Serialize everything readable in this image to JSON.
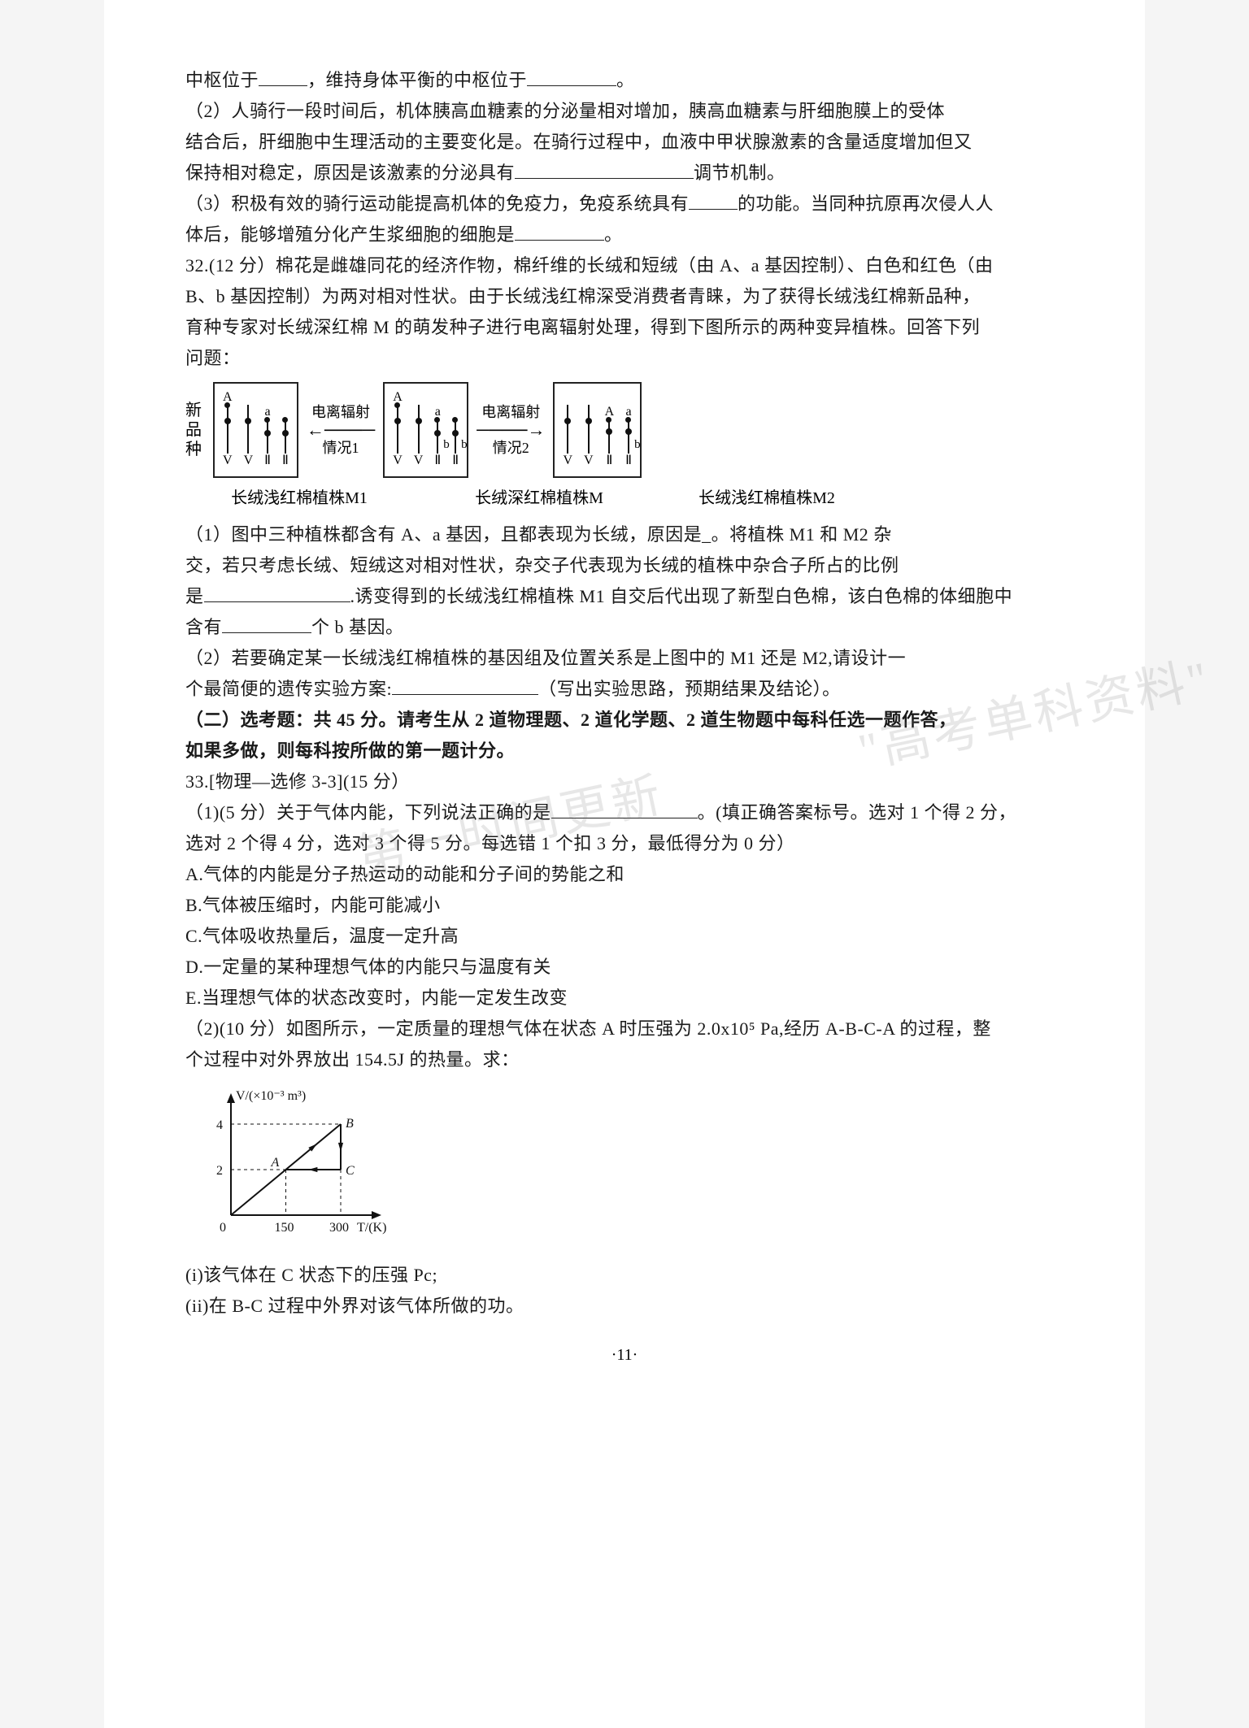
{
  "q31": {
    "l1a": "中枢位于",
    "l1b": "，维持身体平衡的中枢位于",
    "l1c": "。",
    "l2": "（2）人骑行一段时间后，机体胰高血糖素的分泌量相对增加，胰高血糖素与肝细胞膜上的受体",
    "l3": "结合后，肝细胞中生理活动的主要变化是。在骑行过程中，血液中甲状腺激素的含量适度增加但又",
    "l4a": "保持相对稳定，原因是该激素的分泌具有",
    "l4b": "调节机制。",
    "l5a": "（3）积极有效的骑行运动能提高机体的免疫力，免疫系统具有",
    "l5b": "的功能。当同种抗原再次侵人人",
    "l6a": "体后，能够增殖分化产生浆细胞的细胞是",
    "l6b": "。"
  },
  "q32": {
    "head": "32.(12 分）棉花是雌雄同花的经济作物，棉纤维的长绒和短绒（由 A、a 基因控制）、白色和红色（由",
    "l2": "B、b 基因控制）为两对相对性状。由于长绒浅红棉深受消费者青睐，为了获得长绒浅红棉新品种，",
    "l3": "育种专家对长绒深红棉 M 的萌发种子进行电离辐射处理，得到下图所示的两种变异植株。回答下列",
    "l4": "问题：",
    "diagram": {
      "side_label": "新品种",
      "arrow1_top": "电离辐射",
      "arrow1_bot": "情况1",
      "arrow2_top": "电离辐射",
      "arrow2_bot": "情况2",
      "cap1": "长绒浅红棉植株M1",
      "cap2": "长绒深红棉植株M",
      "cap3": "长绒浅红棉植株M2",
      "border_color": "#222222",
      "text_color": "#1a1a1a",
      "box1": {
        "tops": [
          "A",
          "",
          "a",
          ""
        ],
        "bots": [
          "V",
          "V",
          "Ⅱ",
          "Ⅱ"
        ],
        "heights": [
          60,
          60,
          42,
          42
        ],
        "cent": [
          0.33,
          0.33,
          0.4,
          0.4
        ],
        "dots_at_top": [
          true,
          false,
          true,
          true
        ]
      },
      "box2": {
        "tops": [
          "A",
          "",
          "a",
          ""
        ],
        "bots": [
          "V",
          "V",
          "Ⅱ",
          "Ⅱ"
        ],
        "heights": [
          60,
          60,
          42,
          42
        ],
        "cent": [
          0.33,
          0.33,
          0.4,
          0.4
        ],
        "side": [
          "",
          "",
          "b",
          "b"
        ],
        "dots_at_top": [
          true,
          false,
          true,
          true
        ]
      },
      "box3": {
        "tops": [
          "",
          "",
          "A",
          "a"
        ],
        "bots": [
          "V",
          "V",
          "Ⅱ",
          "Ⅱ"
        ],
        "heights": [
          60,
          60,
          42,
          42
        ],
        "cent": [
          0.33,
          0.33,
          0.35,
          0.35
        ],
        "side": [
          "",
          "",
          "",
          "b"
        ],
        "dots_at_top": [
          false,
          false,
          true,
          true
        ]
      }
    },
    "p1l1": "（1）图中三种植株都含有 A、a 基因，且都表现为长绒，原因是_。将植株 M1 和 M2 杂",
    "p1l2": "交，若只考虑长绒、短绒这对相对性状，杂交子代表现为长绒的植株中杂合子所占的比例",
    "p1l3a": "是",
    "p1l3b": ".诱变得到的长绒浅红棉植株 M1 自交后代出现了新型白色棉，该白色棉的体细胞中",
    "p1l4a": "含有",
    "p1l4b": "个 b 基因。",
    "p2l1": "（2）若要确定某一长绒浅红棉植株的基因组及位置关系是上图中的 M1 还是 M2,请设计一",
    "p2l2a": "个最简便的遗传实验方案:",
    "p2l2b": "（写出实验思路，预期结果及结论）。"
  },
  "sec2": {
    "l1": "（二）选考题：共 45 分。请考生从 2 道物理题、2 道化学题、2 道生物题中每科任选一题作答，",
    "l2": "如果多做，则每科按所做的第一题计分。"
  },
  "q33": {
    "head": "33.[物理—选修 3-3](15 分）",
    "p1l1a": "（1)(5 分）关于气体内能，下列说法正确的是",
    "p1l1b": "。(填正确答案标号。选对 1 个得 2 分，",
    "p1l2": "选对 2 个得 4 分，选对 3 个得 5 分。每选错 1 个扣 3 分，最低得分为 0 分）",
    "optA": "A.气体的内能是分子热运动的动能和分子间的势能之和",
    "optB": "B.气体被压缩时，内能可能减小",
    "optC": "C.气体吸收热量后，温度一定升高",
    "optD": "D.一定量的某种理想气体的内能只与温度有关",
    "optE": "E.当理想气体的状态改变时，内能一定发生改变",
    "p2l1": "（2)(10 分）如图所示，一定质量的理想气体在状态 A 时压强为 2.0x10⁵ Pa,经历 A-B-C-A 的过程，整",
    "p2l2": "个过程中对外界放出 154.5J 的热量。求：",
    "graph": {
      "ylabel": "V/(×10⁻³ m³)",
      "xlabel": "T/(K)",
      "xticks": [
        "0",
        "150",
        "300"
      ],
      "yticks": [
        "2",
        "4"
      ],
      "points": {
        "A": [
          150,
          2
        ],
        "B": [
          300,
          4
        ],
        "C": [
          300,
          2
        ]
      },
      "axis_color": "#111111",
      "dash_color": "#111111",
      "bg": "#ffffff"
    },
    "s1": "(i)该气体在 C 状态下的压强 Pc;",
    "s2": "(ii)在 B-C 过程中外界对该气体所做的功。"
  },
  "watermark": "第一时间更新             \"高考单科资料\"",
  "page_number": "·11·",
  "blanks": {
    "w_short": 60,
    "w_med": 110,
    "w_long": 220,
    "w_xl": 180
  },
  "colors": {
    "text": "#1a1a1a",
    "bg": "#ffffff"
  }
}
